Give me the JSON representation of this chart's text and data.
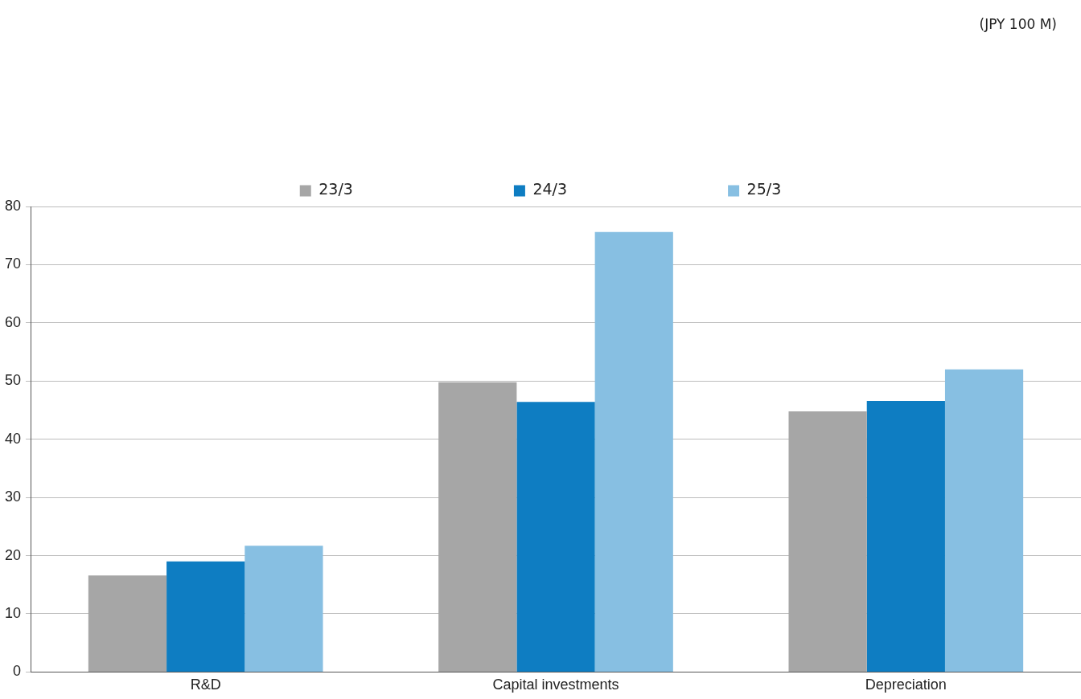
{
  "chart_data": {
    "type": "bar",
    "annotations": [
      "(JPY 100 M)"
    ],
    "categories": [
      "R&D",
      "Capital investments",
      "Depreciation"
    ],
    "series": [
      {
        "name": "23/3",
        "color": "#a6a6a6",
        "values": [
          16.6,
          49.8,
          44.8
        ]
      },
      {
        "name": "24/3",
        "color": "#0e7dc2",
        "values": [
          19.0,
          46.4,
          46.6
        ]
      },
      {
        "name": "25/3",
        "color": "#87bfe2",
        "values": [
          21.7,
          75.6,
          52.0
        ]
      }
    ],
    "ylim": [
      0,
      80
    ],
    "yticks": [
      0,
      10,
      20,
      30,
      40,
      50,
      60,
      70,
      80
    ],
    "grid": "y",
    "legend": "top"
  }
}
